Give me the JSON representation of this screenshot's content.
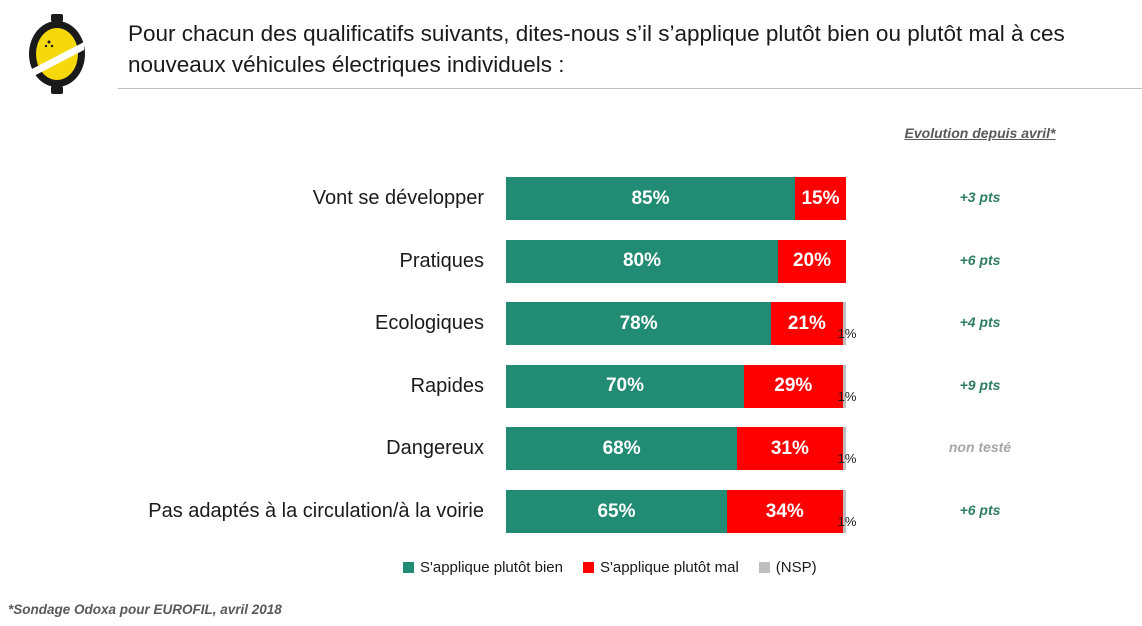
{
  "title": "Pour chacun des qualificatifs suivants, dites-nous s’il s’applique plutôt bien ou plutôt mal à ces nouveaux véhicules électriques individuels :",
  "evolution_header": "Evolution depuis avril*",
  "footnote": "*Sondage Odoxa pour EUROFIL, avril 2018",
  "colors": {
    "bien": "#228B73",
    "mal": "#FF0000",
    "nsp": "#BFBFBF"
  },
  "chart_data": {
    "type": "bar",
    "orientation": "horizontal",
    "stacked": true,
    "categories": [
      "Vont se développer",
      "Pratiques",
      "Ecologiques",
      "Rapides",
      "Dangereux",
      "Pas adaptés à la circulation/à la voirie"
    ],
    "series": [
      {
        "name": "S'applique plutôt bien",
        "values": [
          85,
          80,
          78,
          70,
          68,
          65
        ],
        "labels": [
          "85%",
          "80%",
          "78%",
          "70%",
          "68%",
          "65%"
        ]
      },
      {
        "name": "S'applique plutôt mal",
        "values": [
          15,
          20,
          21,
          29,
          31,
          34
        ],
        "labels": [
          "15%",
          "20%",
          "21%",
          "29%",
          "31%",
          "34%"
        ]
      },
      {
        "name": "(NSP)",
        "values": [
          0,
          0,
          1,
          1,
          1,
          1
        ],
        "labels": [
          "",
          "",
          "1%",
          "1%",
          "1%",
          "1%"
        ]
      }
    ],
    "evolution": [
      "+3 pts",
      "+6 pts",
      "+4 pts",
      "+9 pts",
      "non testé",
      "+6 pts"
    ],
    "xlim": [
      0,
      100
    ],
    "legend_position": "bottom"
  }
}
